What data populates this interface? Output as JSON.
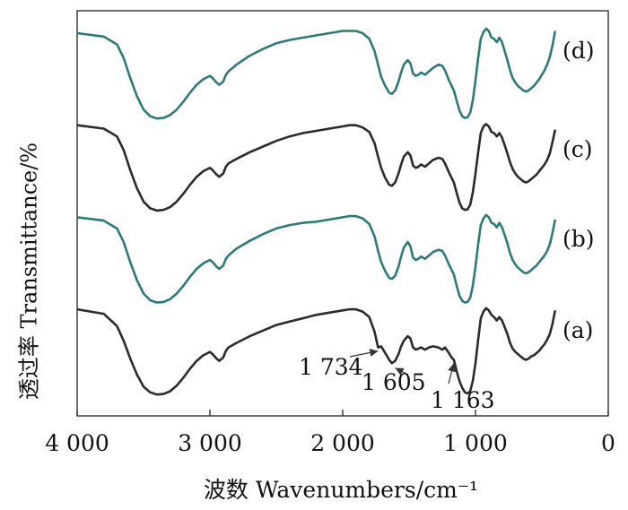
{
  "chart_data": {
    "type": "line",
    "xlabel": "波数  Wavenumbers/cm⁻¹",
    "ylabel": "透过率  Transmittance/%",
    "x_ticks": [
      "4 000",
      "3 000",
      "2 000",
      "1 000",
      "0"
    ],
    "xlim": [
      4000,
      0
    ],
    "grid": false,
    "series": [
      {
        "name": "(a)",
        "color": "#2b2b2b",
        "offset": 0,
        "x": [
          4000,
          3800,
          3700,
          3650,
          3600,
          3550,
          3500,
          3450,
          3400,
          3350,
          3300,
          3250,
          3200,
          3150,
          3100,
          3050,
          3000,
          2980,
          2950,
          2930,
          2900,
          2880,
          2860,
          2800,
          2700,
          2600,
          2500,
          2400,
          2300,
          2200,
          2100,
          2000,
          1950,
          1900,
          1850,
          1800,
          1760,
          1734,
          1710,
          1680,
          1650,
          1630,
          1605,
          1580,
          1560,
          1540,
          1510,
          1490,
          1470,
          1450,
          1430,
          1410,
          1380,
          1350,
          1320,
          1280,
          1250,
          1230,
          1200,
          1180,
          1163,
          1140,
          1120,
          1100,
          1080,
          1060,
          1040,
          1020,
          1000,
          980,
          960,
          940,
          920,
          900,
          880,
          860,
          840,
          820,
          800,
          780,
          760,
          740,
          720,
          700,
          680,
          660,
          640,
          620,
          600,
          580,
          560,
          540,
          520,
          500,
          480,
          460,
          440,
          420,
          400
        ],
        "y": [
          8.0,
          7.6,
          6.5,
          5.2,
          3.6,
          2.2,
          1.1,
          0.6,
          0.4,
          0.45,
          0.7,
          1.2,
          1.9,
          2.7,
          3.4,
          3.9,
          4.2,
          4.0,
          3.6,
          3.4,
          3.7,
          4.3,
          4.6,
          5.0,
          5.6,
          6.1,
          6.6,
          6.9,
          7.2,
          7.5,
          7.7,
          7.9,
          8.0,
          8.0,
          7.8,
          7.3,
          6.0,
          4.6,
          4.7,
          4.1,
          3.5,
          3.2,
          3.4,
          4.0,
          4.7,
          5.2,
          5.6,
          5.4,
          4.6,
          4.4,
          4.5,
          4.6,
          4.4,
          4.6,
          4.7,
          4.6,
          4.4,
          4.6,
          4.1,
          3.7,
          3.5,
          2.4,
          1.6,
          1.0,
          0.6,
          0.5,
          0.7,
          1.6,
          3.2,
          5.3,
          7.2,
          7.8,
          8.1,
          7.9,
          7.5,
          7.3,
          7.0,
          7.3,
          7.0,
          6.4,
          5.8,
          5.0,
          4.5,
          4.2,
          4.0,
          3.8,
          3.6,
          3.5,
          3.6,
          3.8,
          3.9,
          4.1,
          4.3,
          4.6,
          4.9,
          5.3,
          5.8,
          6.7,
          7.9
        ]
      },
      {
        "name": "(b)",
        "color": "#2e7a78",
        "offset": 8.2,
        "x": [
          4000,
          3800,
          3700,
          3650,
          3600,
          3550,
          3500,
          3450,
          3400,
          3350,
          3300,
          3250,
          3200,
          3150,
          3100,
          3050,
          3000,
          2980,
          2950,
          2930,
          2900,
          2880,
          2860,
          2800,
          2700,
          2600,
          2500,
          2400,
          2300,
          2200,
          2100,
          2000,
          1950,
          1900,
          1850,
          1800,
          1760,
          1734,
          1710,
          1680,
          1650,
          1630,
          1605,
          1580,
          1560,
          1540,
          1510,
          1490,
          1470,
          1450,
          1430,
          1410,
          1380,
          1350,
          1320,
          1280,
          1250,
          1230,
          1200,
          1180,
          1163,
          1140,
          1120,
          1100,
          1080,
          1060,
          1040,
          1020,
          1000,
          980,
          960,
          940,
          920,
          900,
          880,
          860,
          840,
          820,
          800,
          780,
          760,
          740,
          720,
          700,
          680,
          660,
          640,
          620,
          600,
          580,
          560,
          540,
          520,
          500,
          480,
          460,
          440,
          420,
          400
        ],
        "y": [
          8.0,
          7.7,
          7.0,
          5.8,
          4.0,
          2.4,
          1.2,
          0.6,
          0.4,
          0.45,
          0.7,
          1.2,
          1.9,
          2.7,
          3.4,
          3.9,
          4.2,
          4.0,
          3.6,
          3.4,
          3.7,
          4.3,
          4.6,
          5.2,
          5.9,
          6.5,
          7.0,
          7.3,
          7.5,
          7.6,
          7.8,
          8.0,
          8.1,
          8.1,
          7.9,
          7.4,
          6.3,
          5.0,
          4.0,
          3.2,
          2.6,
          2.5,
          2.8,
          3.6,
          4.5,
          5.3,
          5.8,
          5.4,
          4.4,
          4.2,
          4.3,
          4.5,
          4.3,
          4.6,
          4.9,
          5.1,
          5.0,
          4.6,
          3.8,
          3.3,
          2.9,
          1.8,
          1.0,
          0.55,
          0.4,
          0.45,
          0.8,
          1.9,
          3.6,
          5.6,
          7.3,
          7.9,
          8.2,
          8.0,
          7.5,
          7.4,
          7.1,
          7.5,
          7.1,
          6.4,
          5.7,
          4.8,
          4.2,
          3.8,
          3.5,
          3.3,
          3.1,
          3.0,
          3.1,
          3.3,
          3.5,
          3.7,
          4.0,
          4.3,
          4.6,
          5.0,
          5.6,
          6.6,
          7.8
        ]
      },
      {
        "name": "(c)",
        "color": "#2b2b2b",
        "offset": 16.4,
        "x": [
          4000,
          3800,
          3700,
          3650,
          3600,
          3550,
          3500,
          3450,
          3400,
          3350,
          3300,
          3250,
          3200,
          3150,
          3100,
          3050,
          3000,
          2980,
          2950,
          2930,
          2900,
          2880,
          2860,
          2800,
          2700,
          2600,
          2500,
          2400,
          2300,
          2200,
          2100,
          2000,
          1950,
          1900,
          1850,
          1800,
          1760,
          1734,
          1710,
          1680,
          1650,
          1630,
          1605,
          1580,
          1560,
          1540,
          1510,
          1490,
          1470,
          1450,
          1430,
          1410,
          1380,
          1350,
          1320,
          1280,
          1250,
          1230,
          1200,
          1180,
          1163,
          1140,
          1120,
          1100,
          1080,
          1060,
          1040,
          1020,
          1000,
          980,
          960,
          940,
          920,
          900,
          880,
          860,
          840,
          820,
          800,
          780,
          760,
          740,
          720,
          700,
          680,
          660,
          640,
          620,
          600,
          580,
          560,
          540,
          520,
          500,
          480,
          460,
          440,
          420,
          400
        ],
        "y": [
          8.0,
          7.7,
          7.0,
          5.8,
          4.0,
          2.4,
          1.2,
          0.6,
          0.4,
          0.45,
          0.7,
          1.2,
          1.9,
          2.7,
          3.4,
          3.9,
          4.2,
          4.0,
          3.6,
          3.4,
          3.7,
          4.3,
          4.6,
          5.0,
          5.6,
          6.1,
          6.6,
          7.0,
          7.3,
          7.5,
          7.7,
          7.9,
          8.0,
          8.0,
          7.8,
          7.4,
          6.4,
          5.2,
          4.2,
          3.3,
          2.7,
          2.6,
          2.9,
          3.7,
          4.5,
          5.2,
          5.6,
          5.3,
          4.4,
          4.2,
          4.3,
          4.5,
          4.3,
          4.6,
          4.9,
          5.1,
          5.0,
          4.6,
          3.8,
          3.3,
          2.9,
          1.9,
          1.1,
          0.6,
          0.45,
          0.5,
          0.9,
          2.0,
          3.7,
          5.6,
          7.3,
          7.9,
          8.1,
          7.9,
          7.4,
          7.3,
          7.0,
          7.3,
          6.9,
          6.2,
          5.5,
          4.7,
          4.1,
          3.7,
          3.4,
          3.2,
          3.0,
          2.9,
          3.0,
          3.2,
          3.4,
          3.6,
          3.9,
          4.2,
          4.5,
          4.9,
          5.5,
          6.5,
          7.6
        ]
      },
      {
        "name": "(d)",
        "color": "#2e7a78",
        "offset": 24.6,
        "x": [
          4000,
          3800,
          3700,
          3650,
          3600,
          3550,
          3500,
          3450,
          3400,
          3350,
          3300,
          3250,
          3200,
          3150,
          3100,
          3050,
          3000,
          2980,
          2950,
          2930,
          2900,
          2880,
          2860,
          2800,
          2700,
          2600,
          2500,
          2400,
          2300,
          2200,
          2100,
          2000,
          1950,
          1900,
          1850,
          1800,
          1760,
          1734,
          1710,
          1680,
          1650,
          1630,
          1605,
          1580,
          1560,
          1540,
          1510,
          1490,
          1470,
          1450,
          1430,
          1410,
          1380,
          1350,
          1320,
          1280,
          1250,
          1230,
          1200,
          1180,
          1163,
          1140,
          1120,
          1100,
          1080,
          1060,
          1040,
          1020,
          1000,
          980,
          960,
          940,
          920,
          900,
          880,
          860,
          840,
          820,
          800,
          780,
          760,
          740,
          720,
          700,
          680,
          660,
          640,
          620,
          600,
          580,
          560,
          540,
          520,
          500,
          480,
          460,
          440,
          420,
          400
        ],
        "y": [
          8.0,
          7.7,
          7.0,
          5.8,
          4.0,
          2.4,
          1.2,
          0.6,
          0.4,
          0.45,
          0.7,
          1.2,
          1.9,
          2.7,
          3.4,
          3.9,
          4.2,
          4.0,
          3.6,
          3.4,
          3.7,
          4.3,
          4.6,
          5.2,
          6.0,
          6.6,
          7.1,
          7.4,
          7.6,
          7.8,
          8.0,
          8.2,
          8.2,
          8.2,
          8.0,
          7.5,
          6.4,
          5.2,
          4.1,
          3.3,
          2.7,
          2.6,
          2.9,
          3.7,
          4.5,
          5.2,
          5.6,
          5.3,
          4.4,
          4.2,
          4.3,
          4.5,
          4.3,
          4.6,
          4.9,
          5.2,
          5.1,
          4.7,
          3.8,
          3.3,
          2.9,
          1.9,
          1.1,
          0.6,
          0.45,
          0.5,
          0.9,
          2.0,
          3.8,
          5.8,
          7.5,
          8.1,
          8.4,
          8.2,
          7.6,
          7.5,
          7.2,
          7.6,
          7.2,
          6.4,
          5.6,
          4.7,
          4.0,
          3.6,
          3.3,
          3.1,
          2.9,
          2.8,
          2.9,
          3.1,
          3.3,
          3.6,
          3.9,
          4.3,
          4.7,
          5.2,
          5.9,
          6.9,
          8.2
        ]
      }
    ],
    "annotations": [
      {
        "label": "1 734",
        "x": 1734
      },
      {
        "label": "1 605",
        "x": 1605
      },
      {
        "label": "1 163",
        "x": 1163
      }
    ]
  }
}
